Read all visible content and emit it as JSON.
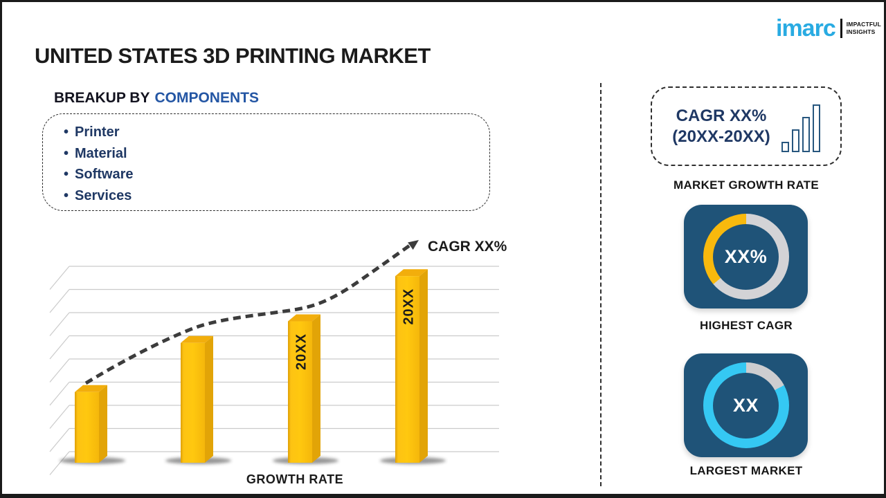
{
  "header": {
    "title": "UNITED STATES 3D PRINTING MARKET"
  },
  "logo": {
    "brand": "imarc",
    "tagline_line1": "IMPACTFUL",
    "tagline_line2": "INSIGHTS"
  },
  "breakup": {
    "heading_prefix": "BREAKUP BY",
    "heading_highlight": "COMPONENTS",
    "bullet": "•",
    "items": [
      "Printer",
      "Material",
      "Software",
      "Services"
    ]
  },
  "chart_data": {
    "type": "bar",
    "title": "",
    "categories": [
      "",
      "",
      "20XX",
      "20XX"
    ],
    "values": [
      36,
      61,
      72,
      95
    ],
    "xlabel": "GROWTH RATE",
    "ylabel": "",
    "ylim": [
      0,
      100
    ],
    "grid": true,
    "legend": false,
    "bar_color": "#FFC30F",
    "trend_label": "CAGR XX%"
  },
  "growth_box": {
    "line1": "CAGR XX%",
    "line2": "(20XX-20XX)",
    "caption": "MARKET GROWTH RATE"
  },
  "donut_cagr": {
    "value_label": "XX%",
    "caption": "HIGHEST CAGR",
    "segments": [
      {
        "color": "#D3D3D6",
        "from": 0,
        "to": 230
      },
      {
        "color": "#F8B90D",
        "from": 230,
        "to": 360
      }
    ]
  },
  "donut_market": {
    "value_label": "XX",
    "caption": "LARGEST MARKET",
    "segments": [
      {
        "color": "#CDCDD0",
        "from": 0,
        "to": 62
      },
      {
        "color": "#35C8F3",
        "from": 62,
        "to": 360
      }
    ]
  },
  "colors": {
    "navy_text": "#1F3864",
    "heading_blue": "#2456A4",
    "logo_blue": "#29ABE2",
    "card_bg": "#1F5378",
    "bar_front": "#FFC30F",
    "donut_yellow": "#F8B90D",
    "donut_cyan": "#35C8F3",
    "trend_line": "#3C3C3C"
  }
}
